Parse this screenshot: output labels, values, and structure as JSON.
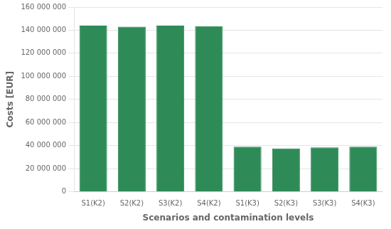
{
  "chart_data": {
    "type": "bar",
    "categories": [
      "S1(K2)",
      "S2(K2)",
      "S3(K2)",
      "S4(K2)",
      "S1(K3)",
      "S2(K3)",
      "S3(K3)",
      "S4(K3)"
    ],
    "values": [
      144000000,
      143000000,
      144000000,
      143500000,
      39000000,
      37500000,
      38500000,
      39000000
    ],
    "color": "#2e8b57",
    "xlabel": "Scenarios and contamination levels",
    "ylabel": "Costs [EUR]",
    "ylim": [
      0,
      160000000
    ],
    "yticks": [
      0,
      {
        "value": 20000000,
        "label": "20 000 000"
      },
      {
        "value": 40000000,
        "label": "40 000 000"
      },
      {
        "value": 60000000,
        "label": "60 000 000"
      },
      {
        "value": 80000000,
        "label": "80 000 000"
      },
      {
        "value": 100000000,
        "label": "100 000 000"
      },
      {
        "value": 120000000,
        "label": "120 000 000"
      },
      {
        "value": 140000000,
        "label": "140 000 000"
      },
      {
        "value": 160000000,
        "label": "160 000 000"
      }
    ],
    "grid": true
  }
}
